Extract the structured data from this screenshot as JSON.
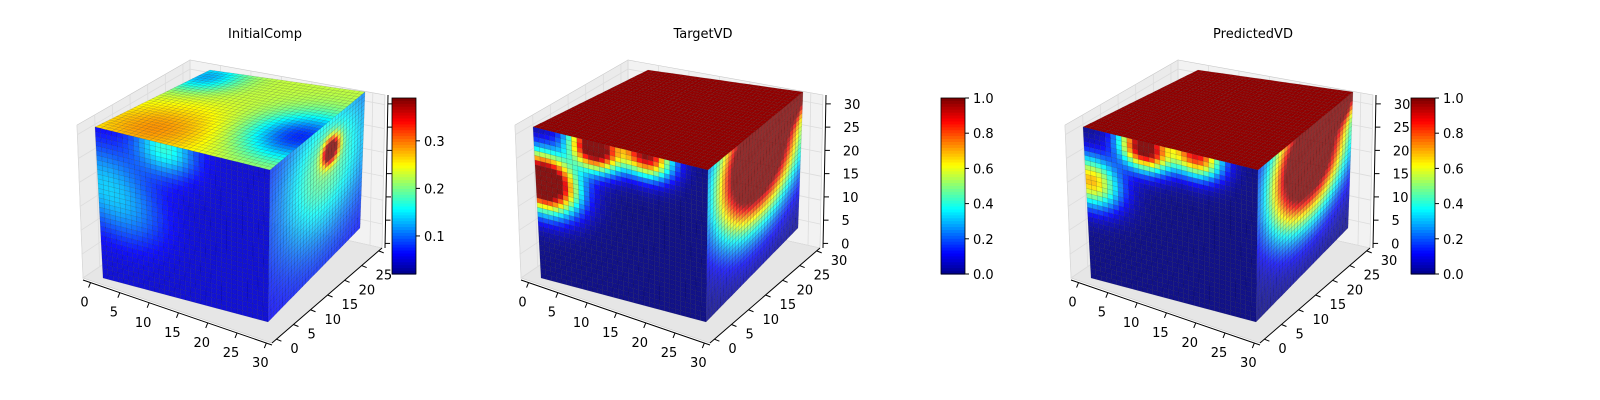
{
  "chart_data": [
    {
      "type": "voxel-3d",
      "title": "InitialComp",
      "x_ticks": [
        "0",
        "5",
        "10",
        "15",
        "20",
        "25",
        "30"
      ],
      "y_ticks": [
        "0",
        "5",
        "10",
        "15",
        "20",
        "25",
        "30"
      ],
      "z_ticks": [
        "",
        "",
        "",
        "",
        "",
        "",
        ""
      ],
      "grid": true,
      "colorbar": {
        "ticks": [
          "0.1",
          "0.2",
          "0.3"
        ],
        "tick_values": [
          0.1,
          0.2,
          0.3
        ],
        "range": [
          0.02,
          0.39
        ],
        "colormap": "jet"
      },
      "faces": {
        "top": {
          "base": 0.23,
          "blobs": [
            [
              0.25,
              0.15,
              0.25,
              0.06
            ],
            [
              0.95,
              0.4,
              0.2,
              -0.15
            ],
            [
              0.05,
              0.9,
              0.15,
              -0.1
            ]
          ]
        },
        "front": {
          "base": 0.05,
          "blobs": [
            [
              0.02,
              0.35,
              0.18,
              0.08
            ],
            [
              0.4,
              0.03,
              0.12,
              0.12
            ],
            [
              0.2,
              0.55,
              0.15,
              0.04
            ]
          ]
        },
        "side": {
          "base": 0.06,
          "blobs": [
            [
              0.6,
              0.3,
              0.35,
              0.14
            ],
            [
              0.65,
              0.22,
              0.06,
              0.32
            ]
          ]
        }
      }
    },
    {
      "type": "voxel-3d",
      "title": "TargetVD",
      "x_ticks": [
        "0",
        "5",
        "10",
        "15",
        "20",
        "25",
        "30"
      ],
      "y_ticks": [
        "0",
        "5",
        "10",
        "15",
        "20",
        "25",
        "30"
      ],
      "z_ticks": [
        "0",
        "5",
        "10",
        "15",
        "20",
        "25",
        "30"
      ],
      "grid": true,
      "colorbar": {
        "ticks": [
          "0.0",
          "0.2",
          "0.4",
          "0.6",
          "0.8",
          "1.0"
        ],
        "tick_values": [
          0,
          0.2,
          0.4,
          0.6,
          0.8,
          1.0
        ],
        "range": [
          0,
          1
        ],
        "colormap": "jet"
      },
      "faces": {
        "top": {
          "base": 0.98,
          "blobs": []
        },
        "front": {
          "base": 0.0,
          "blobs": [
            [
              0.05,
              0.35,
              0.13,
              1.4
            ],
            [
              0.35,
              0.04,
              0.1,
              1.2
            ],
            [
              0.65,
              0.0,
              0.1,
              1.0
            ]
          ]
        },
        "side": {
          "base": 0.0,
          "blobs": [
            [
              0.55,
              0.2,
              0.3,
              1.6
            ],
            [
              0.9,
              0.0,
              0.1,
              1.0
            ]
          ]
        }
      }
    },
    {
      "type": "voxel-3d",
      "title": "PredictedVD",
      "x_ticks": [
        "0",
        "5",
        "10",
        "15",
        "20",
        "25",
        "30"
      ],
      "y_ticks": [
        "0",
        "5",
        "10",
        "15",
        "20",
        "25",
        "30"
      ],
      "z_ticks": [
        "0",
        "5",
        "10",
        "15",
        "20",
        "25",
        "30"
      ],
      "grid": true,
      "colorbar": {
        "ticks": [
          "0.0",
          "0.2",
          "0.4",
          "0.6",
          "0.8",
          "1.0"
        ],
        "tick_values": [
          0,
          0.2,
          0.4,
          0.6,
          0.8,
          1.0
        ],
        "range": [
          0,
          1
        ],
        "colormap": "jet"
      },
      "faces": {
        "top": {
          "base": 0.98,
          "blobs": []
        },
        "front": {
          "base": 0.0,
          "blobs": [
            [
              0.03,
              0.35,
              0.12,
              0.7
            ],
            [
              0.35,
              0.04,
              0.1,
              1.1
            ],
            [
              0.65,
              0.0,
              0.1,
              0.9
            ]
          ]
        },
        "side": {
          "base": 0.0,
          "blobs": [
            [
              0.55,
              0.22,
              0.28,
              1.5
            ],
            [
              0.9,
              0.0,
              0.1,
              1.0
            ]
          ]
        }
      }
    }
  ]
}
